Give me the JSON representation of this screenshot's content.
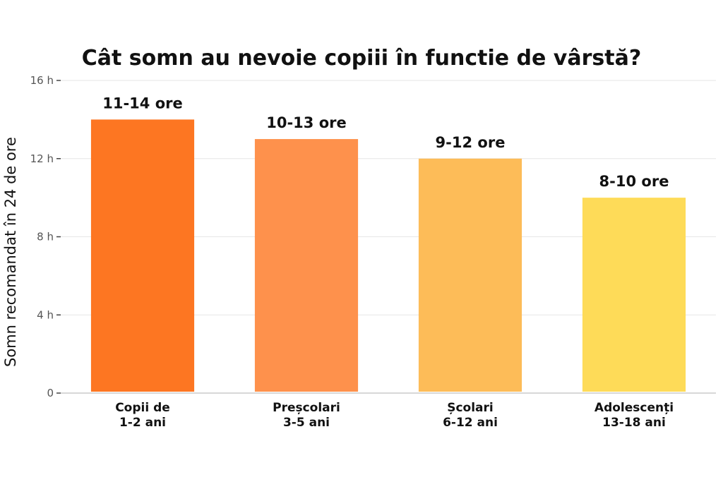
{
  "chart_data": {
    "type": "bar",
    "title": "Cât somn au nevoie copiii în functie de vârstă?",
    "ylabel": "Somn recomandat în 24 de ore",
    "xlabel": "",
    "ylim": [
      0,
      16
    ],
    "yticks": [
      0,
      4,
      8,
      12,
      16
    ],
    "ytick_labels": [
      "0",
      "4 h",
      "8 h",
      "12 h",
      "16 h"
    ],
    "grid": true,
    "categories": [
      [
        "Copii de",
        "1-2 ani"
      ],
      [
        "Preșcolari",
        "3-5 ani"
      ],
      [
        "Școlari",
        "6-12 ani"
      ],
      [
        "Adolescenți",
        "13-18 ani"
      ]
    ],
    "values": [
      14,
      13,
      12,
      10
    ],
    "data_labels": [
      "11-14 ore",
      "10-13 ore",
      "9-12 ore",
      "8-10 ore"
    ],
    "colors": [
      "#fd7622",
      "#fe914c",
      "#fdbc58",
      "#fedb58"
    ]
  }
}
